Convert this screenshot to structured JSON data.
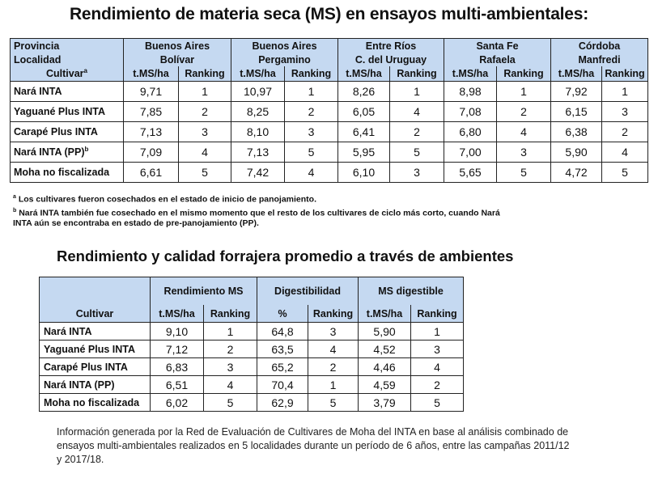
{
  "title": "Rendimiento de materia seca (MS) en ensayos multi-ambientales:",
  "table1": {
    "header_row1_label": "Provincia",
    "header_row2_label": "Localidad",
    "header_row3_label": "Cultivar",
    "cultivar_superscript": "a",
    "locations": [
      {
        "provincia": "Buenos Aires",
        "localidad": "Bolívar"
      },
      {
        "provincia": "Buenos Aires",
        "localidad": "Pergamino"
      },
      {
        "provincia": "Entre Ríos",
        "localidad": "C. del Uruguay"
      },
      {
        "provincia": "Santa Fe",
        "localidad": "Rafaela"
      },
      {
        "provincia": "Córdoba",
        "localidad": "Manfredi"
      }
    ],
    "col_yield": "t.MS/ha",
    "col_rank": "Ranking",
    "rows": [
      {
        "cultivar": "Nará INTA",
        "sup": "",
        "vals": [
          "9,71",
          "1",
          "10,97",
          "1",
          "8,26",
          "1",
          "8,98",
          "1",
          "7,92",
          "1"
        ]
      },
      {
        "cultivar": "Yaguané Plus INTA",
        "sup": "",
        "vals": [
          "7,85",
          "2",
          "8,25",
          "2",
          "6,05",
          "4",
          "7,08",
          "2",
          "6,15",
          "3"
        ]
      },
      {
        "cultivar": "Carapé Plus INTA",
        "sup": "",
        "vals": [
          "7,13",
          "3",
          "8,10",
          "3",
          "6,41",
          "2",
          "6,80",
          "4",
          "6,38",
          "2"
        ]
      },
      {
        "cultivar": "Nará INTA (PP)",
        "sup": "b",
        "vals": [
          "7,09",
          "4",
          "7,13",
          "5",
          "5,95",
          "5",
          "7,00",
          "3",
          "5,90",
          "4"
        ]
      },
      {
        "cultivar": "Moha no fiscalizada",
        "sup": "",
        "vals": [
          "6,61",
          "5",
          "7,42",
          "4",
          "6,10",
          "3",
          "5,65",
          "5",
          "4,72",
          "5"
        ]
      }
    ]
  },
  "notes": {
    "a_mark": "a",
    "a": "Los cultivares fueron cosechados en el estado de inicio de panojamiento.",
    "b_mark": "b",
    "b_line1": "Nará INTA también fue cosechado en el mismo momento que el resto de los cultivares de ciclo más corto, cuando Nará",
    "b_line2": "INTA aún se encontraba en estado de pre-panojamiento (PP)."
  },
  "title2": "Rendimiento y calidad forrajera promedio a través de ambientes",
  "table2": {
    "cultivar_label": "Cultivar",
    "groups": [
      "Rendimiento MS",
      "Digestibilidad",
      "MS digestible"
    ],
    "subheaders": [
      "t.MS/ha",
      "Ranking",
      "%",
      "Ranking",
      "t.MS/ha",
      "Ranking"
    ],
    "rows": [
      {
        "cultivar": "Nará INTA",
        "vals": [
          "9,10",
          "1",
          "64,8",
          "3",
          "5,90",
          "1"
        ]
      },
      {
        "cultivar": "Yaguané Plus INTA",
        "vals": [
          "7,12",
          "2",
          "63,5",
          "4",
          "4,52",
          "3"
        ]
      },
      {
        "cultivar": "Carapé Plus INTA",
        "vals": [
          "6,83",
          "3",
          "65,2",
          "2",
          "4,46",
          "4"
        ]
      },
      {
        "cultivar": "Nará INTA (PP)",
        "vals": [
          "6,51",
          "4",
          "70,4",
          "1",
          "4,59",
          "2"
        ]
      },
      {
        "cultivar": "Moha no fiscalizada",
        "vals": [
          "6,02",
          "5",
          "62,9",
          "5",
          "3,79",
          "5"
        ]
      }
    ]
  },
  "footer": {
    "line1": "Información generada por la Red de Evaluación de Cultivares de Moha del INTA en base al análisis combinado de",
    "line2": "ensayos multi-ambientales realizados en 5 localidades durante un período de 6 años, entre las campañas 2011/12",
    "line3": "y 2017/18."
  }
}
